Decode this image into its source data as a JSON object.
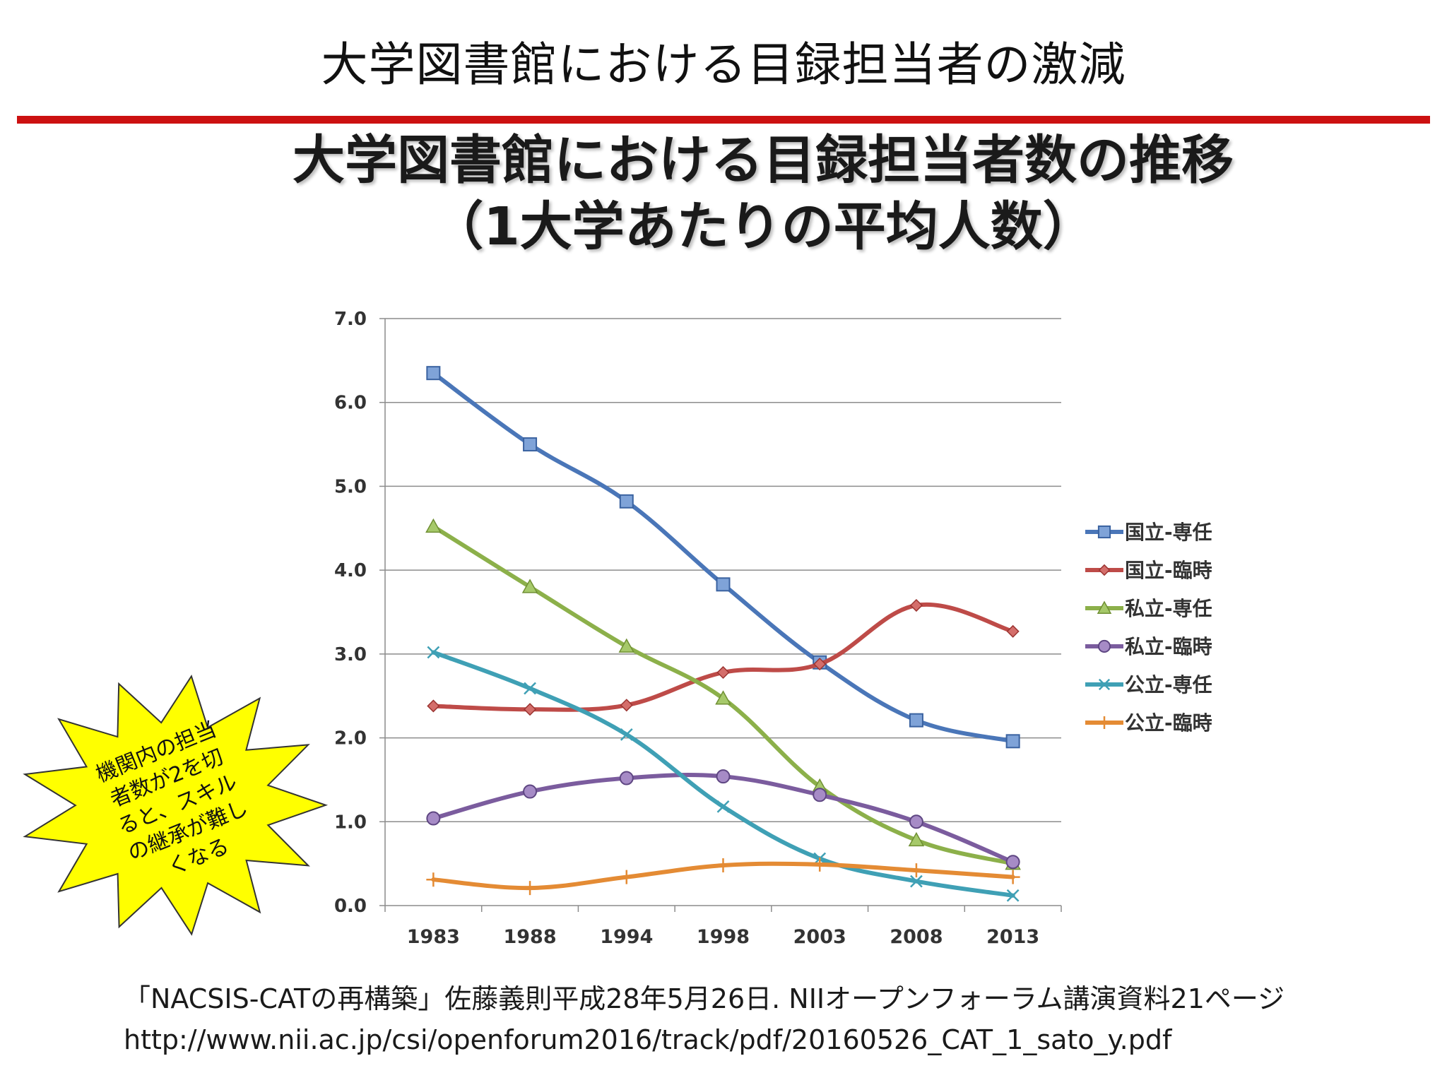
{
  "slide": {
    "title": "大学図書館における目録担当者の激減",
    "rule_color": "#cc1111"
  },
  "chart_data": {
    "type": "line",
    "title_line1": "大学図書館における目録担当者数の推移",
    "title_line2": "（1大学あたりの平均人数）",
    "categories": [
      "1983",
      "1988",
      "1994",
      "1998",
      "2003",
      "2008",
      "2013"
    ],
    "ylim": [
      0,
      7
    ],
    "yticks": [
      "0.0",
      "1.0",
      "2.0",
      "3.0",
      "4.0",
      "5.0",
      "6.0",
      "7.0"
    ],
    "grid": true,
    "legend_position": "right",
    "series": [
      {
        "name": "国立-専任",
        "color": "#4a76b8",
        "marker": "square",
        "values": [
          6.35,
          5.5,
          4.82,
          3.83,
          2.9,
          2.21,
          1.96
        ]
      },
      {
        "name": "国立-臨時",
        "color": "#be4b48",
        "marker": "diamond",
        "values": [
          2.38,
          2.34,
          2.39,
          2.78,
          2.88,
          3.58,
          3.27
        ]
      },
      {
        "name": "私立-専任",
        "color": "#8cb04a",
        "marker": "triangle",
        "values": [
          4.52,
          3.8,
          3.09,
          2.47,
          1.42,
          0.78,
          0.5
        ]
      },
      {
        "name": "私立-臨時",
        "color": "#7b5c9e",
        "marker": "circle",
        "values": [
          1.04,
          1.36,
          1.52,
          1.54,
          1.32,
          1.0,
          0.52
        ]
      },
      {
        "name": "公立-専任",
        "color": "#3fa0b5",
        "marker": "x",
        "values": [
          3.02,
          2.59,
          2.04,
          1.18,
          0.56,
          0.29,
          0.12
        ]
      },
      {
        "name": "公立-臨時",
        "color": "#e48b34",
        "marker": "plus",
        "values": [
          0.31,
          0.21,
          0.34,
          0.48,
          0.49,
          0.42,
          0.34
        ]
      }
    ]
  },
  "callout": {
    "lines": [
      "機関内の担当",
      "者数が2を切",
      "ると、スキル",
      "の継承が難し",
      "くなる"
    ],
    "fill": "#ffff00"
  },
  "citation": {
    "line1": "「NACSIS-CATの再構築」佐藤義則平成28年5月26日. NIIオープンフォーラム講演資料21ページ",
    "line2": "http://www.nii.ac.jp/csi/openforum2016/track/pdf/20160526_CAT_1_sato_y.pdf"
  }
}
